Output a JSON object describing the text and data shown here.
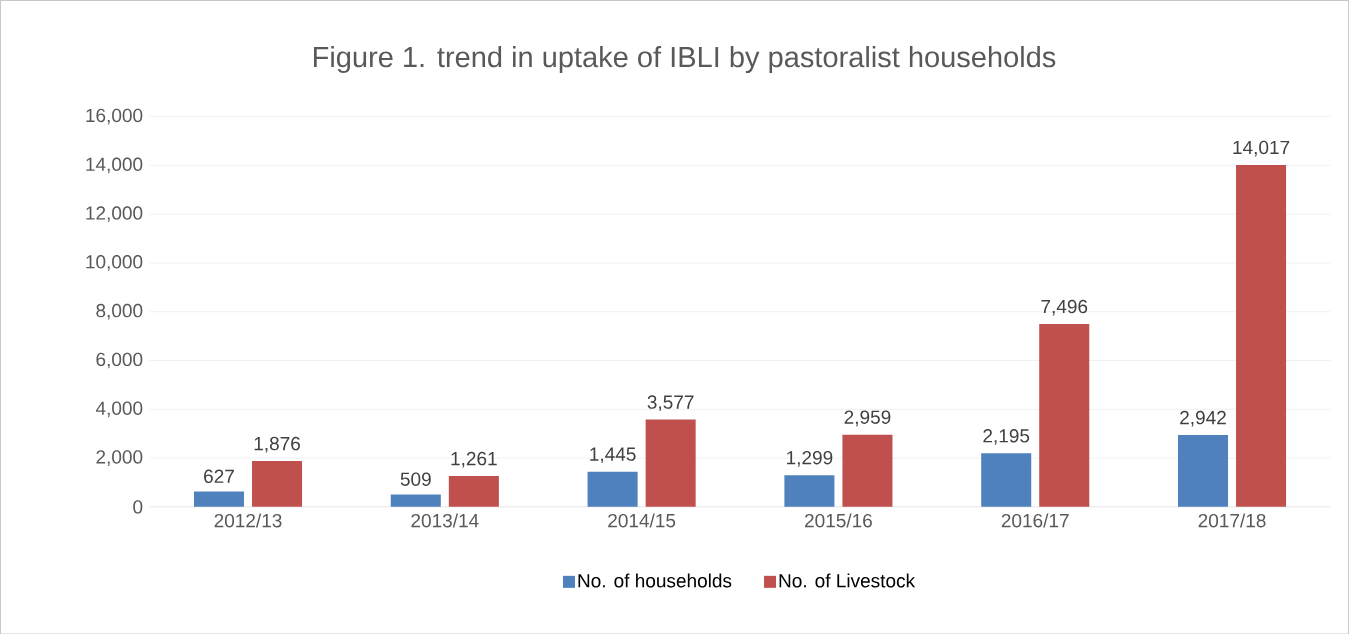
{
  "chart_data": {
    "type": "bar",
    "title": "Figure 1. trend in uptake of IBLI by pastoralist households",
    "categories": [
      "2012/13",
      "2013/14",
      "2014/15",
      "2015/16",
      "2016/17",
      "2017/18"
    ],
    "series": [
      {
        "name": "No. of households",
        "color": "#4f81bd",
        "values": [
          627,
          509,
          1445,
          1299,
          2195,
          2942
        ],
        "value_labels": [
          "627",
          "509",
          "1,445",
          "1,299",
          "2,195",
          "2,942"
        ]
      },
      {
        "name": "No. of Livestock",
        "color": "#c0504d",
        "values": [
          1876,
          1261,
          3577,
          2959,
          7496,
          14017
        ],
        "value_labels": [
          "1,876",
          "1,261",
          "3,577",
          "2,959",
          "7,496",
          "14,017"
        ]
      }
    ],
    "ylim": [
      0,
      16000
    ],
    "yticks": [
      0,
      {
        "value": 2000,
        "label": "2,000"
      },
      {
        "value": 4000,
        "label": "4,000"
      },
      {
        "value": 6000,
        "label": "6,000"
      },
      {
        "value": 8000,
        "label": "8,000"
      },
      {
        "value": 10000,
        "label": "10,000"
      },
      {
        "value": 12000,
        "label": "12,000"
      },
      {
        "value": 14000,
        "label": "14,000"
      },
      {
        "value": 16000,
        "label": "16,000"
      }
    ],
    "grid": "y",
    "legend": "bottom"
  }
}
